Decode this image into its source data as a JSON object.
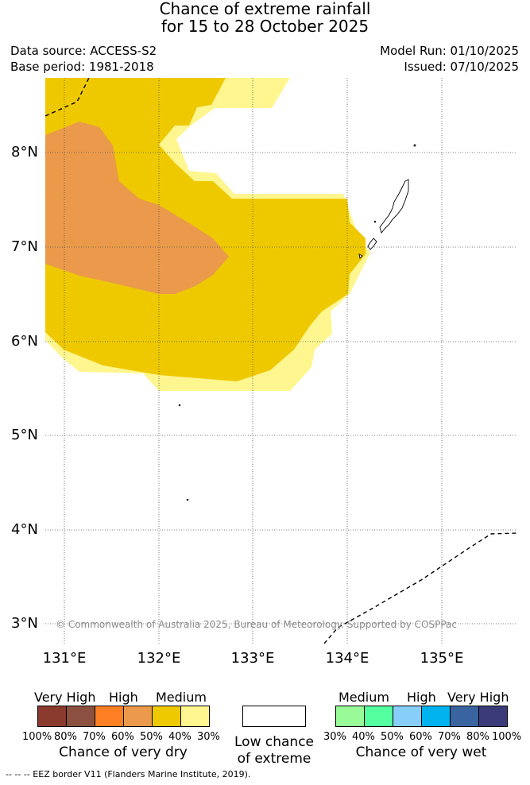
{
  "title": {
    "line1": "Chance of extreme rainfall",
    "line2": "for 15 to 28 October 2025"
  },
  "meta": {
    "data_source": "Data source: ACCESS-S2",
    "base_period": "Base period: 1981-2018",
    "model_run": "Model Run: 01/10/2025",
    "issued": "Issued: 07/10/2025"
  },
  "map": {
    "lat_ticks": [
      "8°N",
      "7°N",
      "6°N",
      "5°N",
      "4°N",
      "3°N"
    ],
    "lon_ticks": [
      "131°E",
      "132°E",
      "133°E",
      "134°E",
      "135°E"
    ],
    "credit": "© Commonwealth of Australia 2025, Bureau of Meteorology. Supported by COSPPac",
    "colors": {
      "dry_30": "#fff68f",
      "dry_50": "#eec900",
      "dry_60": "#ea9a4a",
      "grid": "#555555",
      "eez": "#000000",
      "land_outline": "#000000"
    }
  },
  "legend": {
    "dry": {
      "categories": [
        "Very High",
        "High",
        "Medium"
      ],
      "percents": [
        "100%",
        "80%",
        "70%",
        "60%",
        "50%",
        "40%",
        "30%"
      ],
      "colors": [
        "#8b3a2e",
        "#8b5040",
        "#ff7f24",
        "#ea9a4a",
        "#eec900",
        "#fff68f"
      ],
      "label": "Chance of very dry"
    },
    "low": {
      "label_line1": "Low chance",
      "label_line2": "of extreme"
    },
    "wet": {
      "categories": [
        "Medium",
        "High",
        "Very High"
      ],
      "percents": [
        "30%",
        "40%",
        "50%",
        "60%",
        "70%",
        "80%",
        "100%"
      ],
      "colors": [
        "#98fb98",
        "#54ff9f",
        "#87cefa",
        "#00b2ee",
        "#3a64a0",
        "#3b3b7a"
      ],
      "label": "Chance of very wet"
    }
  },
  "footer": "--  --  -- EEZ border V11 (Flanders Marine Institute, 2019)."
}
